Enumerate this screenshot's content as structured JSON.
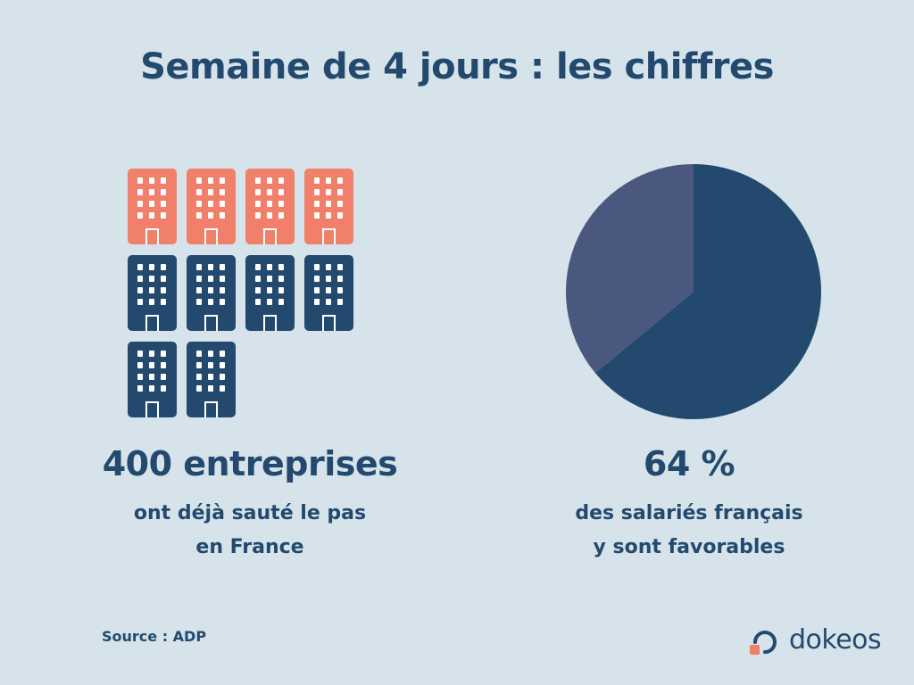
{
  "title": "Semaine de 4 jours : les chiffres",
  "left_stat": {
    "value": "400 entreprises",
    "caption_line1": "ont déjà sauté le pas",
    "caption_line2": "en France",
    "icon": "building-icon",
    "icons_total": 10,
    "icons_highlighted": 4
  },
  "right_stat": {
    "value": "64 %",
    "caption_line1": "des salariés français",
    "caption_line2": "y sont favorables"
  },
  "chart_data": {
    "type": "pie",
    "values": [
      64,
      36
    ],
    "colors": [
      "#234a6e",
      "#4a587f"
    ]
  },
  "source": "Source : ADP",
  "logo": {
    "text": "dokeos",
    "mark_color": "#f08069",
    "text_color": "#234a6e"
  },
  "colors": {
    "background": "#d6e3ea",
    "primary": "#234a6e",
    "accent": "#f08069",
    "secondary": "#4a587f"
  }
}
